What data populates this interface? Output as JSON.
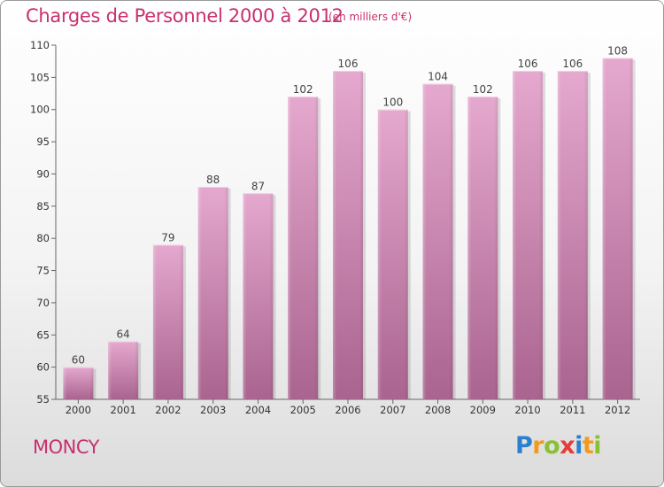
{
  "header": {
    "title": "Charges de Personnel 2000 à 2012",
    "unit": "(en milliers d'€)"
  },
  "footer": {
    "place": "MONCY",
    "logo": {
      "letters": [
        {
          "char": "P",
          "color": "#2c7fd0"
        },
        {
          "char": "r",
          "color": "#f39a1e"
        },
        {
          "char": "o",
          "color": "#8bc034"
        },
        {
          "char": "x",
          "color": "#e63b3b"
        },
        {
          "char": "i",
          "color": "#2c7fd0"
        },
        {
          "char": "t",
          "color": "#f39a1e"
        },
        {
          "char": "i",
          "color": "#8bc034"
        }
      ]
    }
  },
  "chart_data": {
    "type": "bar",
    "title": "Charges de Personnel 2000 à 2012",
    "subtitle": "(en milliers d'€)",
    "categories": [
      "2000",
      "2001",
      "2002",
      "2003",
      "2004",
      "2005",
      "2006",
      "2007",
      "2008",
      "2009",
      "2010",
      "2011",
      "2012"
    ],
    "values": [
      60,
      64,
      79,
      88,
      87,
      102,
      106,
      100,
      104,
      102,
      106,
      106,
      108
    ],
    "ylim": [
      55,
      110
    ],
    "yticks": [
      55,
      60,
      65,
      70,
      75,
      80,
      85,
      90,
      95,
      100,
      105,
      110
    ],
    "grid": false,
    "bar_color_top": "#e5a8ce",
    "bar_color_bottom": "#a9648f",
    "text_color": "#c8306f"
  }
}
